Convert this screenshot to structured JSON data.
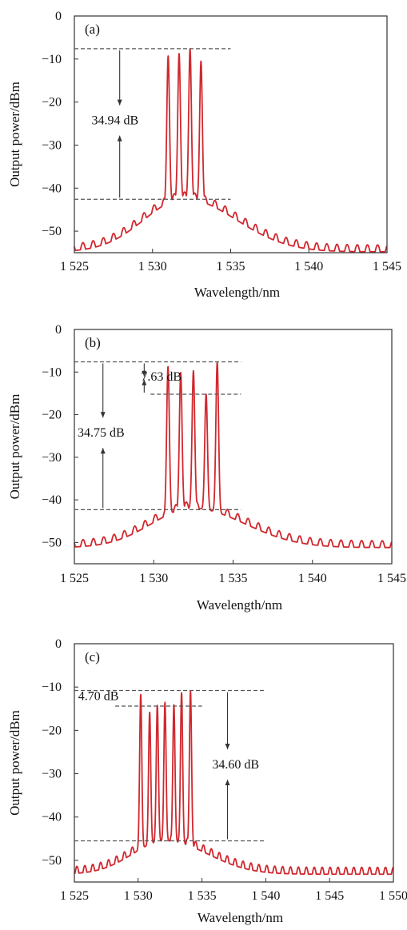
{
  "colors": {
    "spectrum": "#d0282e",
    "axis": "#333333",
    "reference_line": "#555555"
  },
  "chart_data": [
    {
      "type": "line",
      "panel_label": "(a)",
      "xlabel": "Wavelength/nm",
      "ylabel": "Output power/dBm",
      "xlim": [
        1525,
        1545
      ],
      "ylim": [
        -55,
        0
      ],
      "x_ticks": [
        1525,
        1530,
        1535,
        1540,
        1545
      ],
      "x_tick_labels": [
        "1 525",
        "1 530",
        "1 535",
        "1 540",
        "1 545"
      ],
      "y_ticks": [
        0,
        -10,
        -20,
        -30,
        -40,
        -50
      ],
      "y_tick_labels": [
        "0",
        "−10",
        "−20",
        "−30",
        "−40",
        "−50"
      ],
      "grid": false,
      "peaks": [
        {
          "x": 1531.0,
          "y": -9.3
        },
        {
          "x": 1531.7,
          "y": -8.7
        },
        {
          "x": 1532.4,
          "y": -7.6
        },
        {
          "x": 1533.1,
          "y": -10.5
        }
      ],
      "noise_floor": {
        "baseline_dBm": -54.8,
        "max_near_peaks_dBm": -42.5,
        "ripple_period_nm": 0.65
      },
      "reference_lines": [
        {
          "y": -7.6,
          "x_start": 1525,
          "x_end": 1535
        },
        {
          "y": -42.6,
          "x_start": 1525,
          "x_end": 1535
        }
      ],
      "annotations": [
        {
          "text": "34.94 dB",
          "x": 1526.1,
          "y": -25.2,
          "arrow_x": 1527.9,
          "arrow_from": -7.6,
          "arrow_to": -42.6
        }
      ]
    },
    {
      "type": "line",
      "panel_label": "(b)",
      "xlabel": "Wavelength/nm",
      "ylabel": "Output power/dBm",
      "xlim": [
        1525,
        1545
      ],
      "ylim": [
        -55,
        0
      ],
      "x_ticks": [
        1525,
        1530,
        1535,
        1540,
        1545
      ],
      "x_tick_labels": [
        "1 525",
        "1 530",
        "1 535",
        "1 540",
        "1 545"
      ],
      "y_ticks": [
        0,
        -10,
        -20,
        -30,
        -40,
        -50
      ],
      "y_tick_labels": [
        "0",
        "−10",
        "−20",
        "−30",
        "−40",
        "−50"
      ],
      "grid": false,
      "peaks": [
        {
          "x": 1530.9,
          "y": -8.7
        },
        {
          "x": 1531.7,
          "y": -10.1
        },
        {
          "x": 1532.5,
          "y": -9.7
        },
        {
          "x": 1533.3,
          "y": -15.2
        },
        {
          "x": 1534.0,
          "y": -7.7
        }
      ],
      "noise_floor": {
        "baseline_dBm": -51.2,
        "max_near_peaks_dBm": -42.0,
        "ripple_period_nm": 0.65
      },
      "reference_lines": [
        {
          "y": -7.6,
          "x_start": 1525,
          "x_end": 1535.5
        },
        {
          "y": -15.2,
          "x_start": 1529.8,
          "x_end": 1535.5
        },
        {
          "y": -42.3,
          "x_start": 1525,
          "x_end": 1535.5
        }
      ],
      "annotations": [
        {
          "text": "7.63 dB",
          "x": 1529.2,
          "y": -12.0,
          "arrow_x": 1529.4,
          "arrow_from": -7.6,
          "arrow_to": -15.2
        },
        {
          "text": "34.75 dB",
          "x": 1525.2,
          "y": -25.2,
          "arrow_x": 1526.8,
          "arrow_from": -7.6,
          "arrow_to": -42.3
        }
      ]
    },
    {
      "type": "line",
      "panel_label": "(c)",
      "xlabel": "Wavelength/nm",
      "ylabel": "Output power/dBm",
      "xlim": [
        1525,
        1550
      ],
      "ylim": [
        -55,
        0
      ],
      "x_ticks": [
        1525,
        1530,
        1535,
        1540,
        1545,
        1550
      ],
      "x_tick_labels": [
        "1 525",
        "1 530",
        "1 535",
        "1 540",
        "1 545",
        "1 550"
      ],
      "y_ticks": [
        0,
        -10,
        -20,
        -30,
        -40,
        -50
      ],
      "y_tick_labels": [
        "0",
        "−10",
        "−20",
        "−30",
        "−40",
        "−50"
      ],
      "grid": false,
      "peaks": [
        {
          "x": 1530.2,
          "y": -11.7
        },
        {
          "x": 1530.9,
          "y": -15.8
        },
        {
          "x": 1531.5,
          "y": -14.2
        },
        {
          "x": 1532.1,
          "y": -13.5
        },
        {
          "x": 1532.8,
          "y": -14.1
        },
        {
          "x": 1533.4,
          "y": -11.3
        },
        {
          "x": 1534.1,
          "y": -10.9
        }
      ],
      "noise_floor": {
        "baseline_dBm": -53.2,
        "max_near_peaks_dBm": -45.5,
        "ripple_period_nm": 0.62
      },
      "reference_lines": [
        {
          "y": -10.8,
          "x_start": 1525,
          "x_end": 1540
        },
        {
          "y": -14.4,
          "x_start": 1528.2,
          "x_end": 1535
        },
        {
          "y": -45.5,
          "x_start": 1525,
          "x_end": 1540
        }
      ],
      "annotations": [
        {
          "text": "4.70 dB",
          "x": 1525.3,
          "y": -13.0,
          "arrow_x": null,
          "arrow_from": null,
          "arrow_to": null
        },
        {
          "text": "34.60 dB",
          "x": 1535.8,
          "y": -28.8,
          "arrow_x": 1537.0,
          "arrow_from": -10.8,
          "arrow_to": -45.5
        }
      ]
    }
  ]
}
